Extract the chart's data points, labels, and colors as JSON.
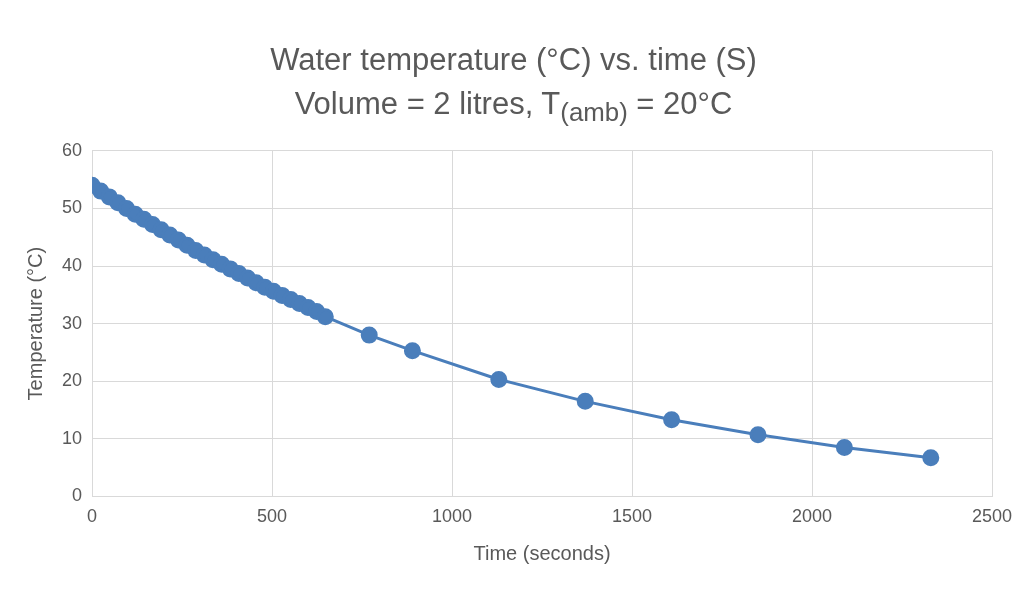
{
  "chart_data": {
    "type": "line",
    "title": "Water temperature (°C) vs. time (S)",
    "subtitle": "Volume = 2 litres, T$_{(amb)}$ = 20°C",
    "xlabel": "Time (seconds)",
    "ylabel": "Temperature (°C)",
    "x": [
      0,
      24,
      48,
      72,
      96,
      120,
      144,
      168,
      192,
      216,
      240,
      264,
      288,
      312,
      336,
      360,
      384,
      408,
      432,
      456,
      480,
      504,
      528,
      552,
      576,
      600,
      624,
      648,
      770,
      890,
      1130,
      1370,
      1610,
      1850,
      2090,
      2330
    ],
    "series": [
      {
        "color": "#4a7ebb",
        "values": [
          54.0,
          53.0,
          52.0,
          51.0,
          50.0,
          49.0,
          48.1,
          47.2,
          46.3,
          45.4,
          44.5,
          43.6,
          42.7,
          41.9,
          41.1,
          40.3,
          39.5,
          38.7,
          37.9,
          37.1,
          36.3,
          35.6,
          34.9,
          34.2,
          33.5,
          32.8,
          32.1,
          31.2,
          28.0,
          25.3,
          20.3,
          16.5,
          13.3,
          10.7,
          8.5,
          6.7
        ]
      }
    ],
    "xlim": [
      0,
      2500
    ],
    "xticks": [
      0,
      500,
      1000,
      1500,
      2000,
      2500
    ],
    "ylim": [
      0,
      60
    ],
    "yticks": [
      0,
      10,
      20,
      30,
      40,
      50,
      60
    ],
    "grid": true,
    "marker": "circle",
    "line_style": "solid",
    "legend": false
  }
}
